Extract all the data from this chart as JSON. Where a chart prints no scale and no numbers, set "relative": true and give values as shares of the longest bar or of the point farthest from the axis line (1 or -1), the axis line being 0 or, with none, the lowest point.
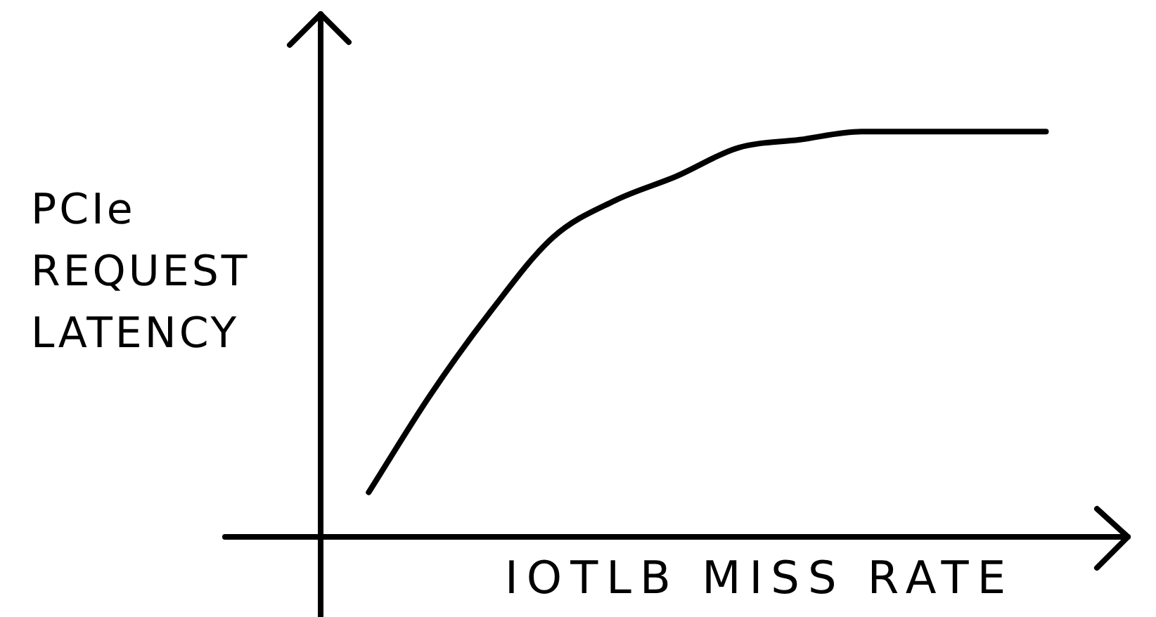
{
  "chart_data": {
    "type": "line",
    "xlabel": "IOTLB MISS RATE",
    "ylabel": "PCIe REQUEST LATENCY",
    "relative": true,
    "legend": false,
    "marker": "none",
    "line_style": "solid",
    "categories": [
      null,
      null,
      null,
      null,
      null,
      null,
      null,
      null,
      null,
      null,
      null,
      null
    ],
    "series": [
      {
        "color": "#000000",
        "values": [
          0.11,
          0.35,
          0.56,
          0.74,
          0.83,
          0.89,
          0.96,
          0.98,
          1,
          1,
          1,
          1
        ]
      }
    ]
  }
}
